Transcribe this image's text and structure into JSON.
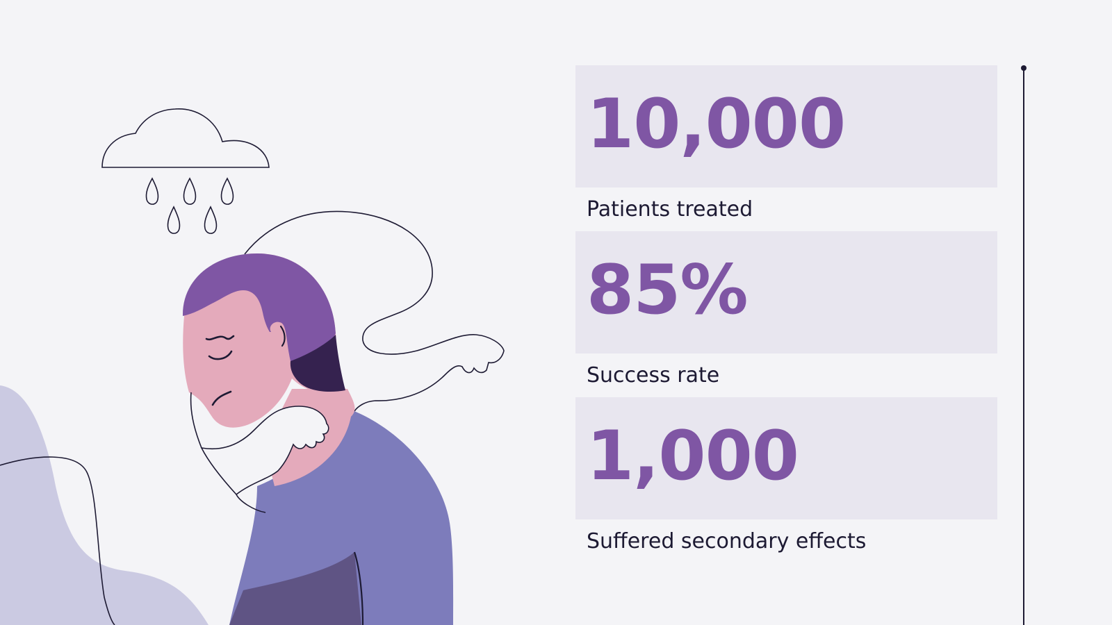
{
  "stats": [
    {
      "value": "10,000",
      "label": "Patients treated"
    },
    {
      "value": "85%",
      "label": "Success rate"
    },
    {
      "value": "1,000",
      "label": "Suffered secondary effects"
    }
  ],
  "illustration": {
    "subject": "sick-person-coughing-under-rain-cloud-icon"
  },
  "colors": {
    "background": "#f4f4f7",
    "stat_box": "#e8e6ef",
    "accent_purple": "#7f56a4",
    "text_dark": "#1d1a33",
    "shirt": "#7d7cbb",
    "skin": "#e4aabb",
    "blob": "#cbcae2"
  }
}
